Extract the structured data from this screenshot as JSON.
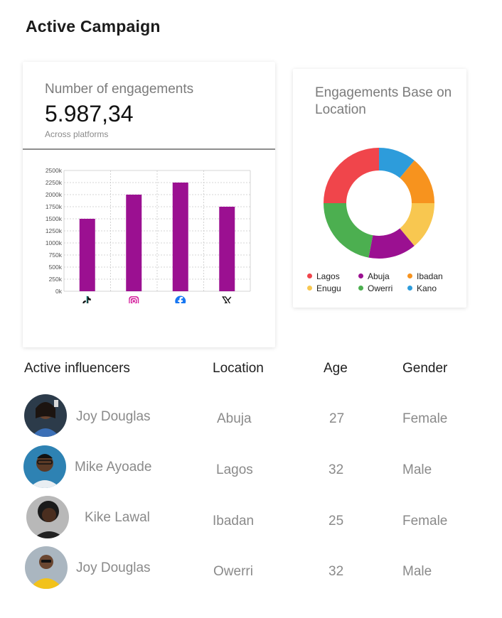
{
  "page": {
    "title": "Active Campaign"
  },
  "engagement_card": {
    "label": "Number of engagements",
    "value": "5.987,34",
    "subtitle": "Across platforms"
  },
  "location_card": {
    "title": "Engagements Base on Location"
  },
  "table": {
    "headers": [
      "Active influencers",
      "Location",
      "Age",
      "Gender"
    ],
    "rows": [
      {
        "name": "Joy Douglas",
        "location": "Abuja",
        "age": "27",
        "gender": "Female"
      },
      {
        "name": "Mike Ayoade",
        "location": "Lagos",
        "age": "32",
        "gender": "Male"
      },
      {
        "name": "Kike Lawal",
        "location": "Ibadan",
        "age": "25",
        "gender": "Female"
      },
      {
        "name": "Joy Douglas",
        "location": "Owerri",
        "age": "32",
        "gender": "Male"
      }
    ]
  },
  "chart_data": [
    {
      "type": "bar",
      "categories": [
        "TikTok",
        "Instagram",
        "Facebook",
        "X"
      ],
      "category_icons": [
        "tiktok-icon",
        "instagram-icon",
        "facebook-icon",
        "x-icon"
      ],
      "values": [
        1500,
        2000,
        2250,
        1750
      ],
      "ylim": [
        0,
        2500
      ],
      "yticks": [
        "0k",
        "250k",
        "500k",
        "750k",
        "1000k",
        "1250k",
        "1500k",
        "1750k",
        "2000k",
        "2250k",
        "2500k"
      ],
      "grid": true,
      "color": "#9b1091"
    },
    {
      "type": "pie",
      "style": "donut",
      "labels": [
        "Lagos",
        "Abuja",
        "Ibadan",
        "Enugu",
        "Owerri",
        "Kano"
      ],
      "values": [
        25,
        14,
        14,
        14,
        22,
        11
      ],
      "colors": [
        "#f0454b",
        "#9b1091",
        "#f7931e",
        "#f8c750",
        "#4caf50",
        "#2d9cdb"
      ],
      "legend": "bottom"
    }
  ]
}
